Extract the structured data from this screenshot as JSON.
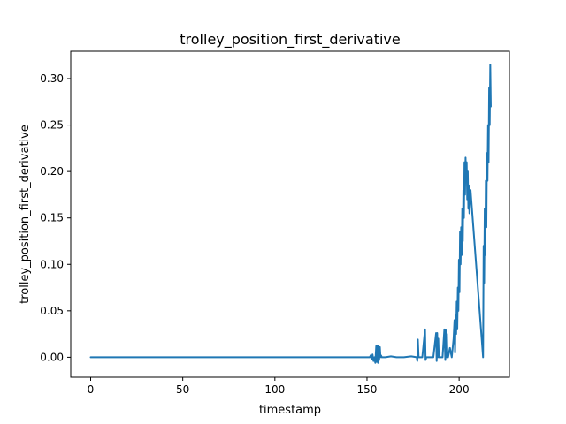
{
  "chart_data": {
    "type": "line",
    "title": "trolley_position_first_derivative",
    "xlabel": "timestamp",
    "ylabel": "trolley_position_first_derivative",
    "xlim": [
      -10.8,
      227.3
    ],
    "ylim": [
      -0.0215,
      0.3295
    ],
    "xticks": [
      0,
      50,
      100,
      150,
      200
    ],
    "yticks": [
      0.0,
      0.05,
      0.1,
      0.15,
      0.2,
      0.25,
      0.3
    ],
    "ytick_labels": [
      "0.00",
      "0.05",
      "0.10",
      "0.15",
      "0.20",
      "0.25",
      "0.30"
    ],
    "grid": false,
    "color": "#1f77b4",
    "series": [
      {
        "x": [
          0,
          151.5,
          152.0,
          152.5,
          153.0,
          153.5,
          154.0,
          154.5,
          155.0,
          155.3,
          155.6,
          156.0,
          156.3,
          156.6,
          157.0,
          157.3,
          157.6,
          158.0,
          160,
          163,
          166,
          170,
          174,
          177,
          177.3,
          177.6,
          178,
          180,
          181.5,
          181.8,
          182.2,
          184,
          186,
          187.5,
          187.8,
          188.1,
          188.4,
          188.7,
          189.0,
          190,
          191,
          192.0,
          192.5,
          192.8,
          193.1,
          193.4,
          193.7,
          194.0,
          195,
          196,
          197.0,
          197.5,
          197.8,
          198.1,
          198.4,
          198.7,
          199.0,
          199.3,
          199.6,
          199.9,
          200.2,
          200.5,
          200.8,
          201.1,
          201.4,
          201.7,
          202.0,
          202.3,
          202.6,
          202.9,
          203.2,
          203.5,
          203.8,
          204.1,
          204.4,
          204.7,
          205.0,
          205.3,
          205.6,
          205.9,
          206.2,
          213.0,
          213.3,
          213.6,
          213.9,
          214.2,
          214.5,
          214.8,
          215.1,
          215.4,
          215.7,
          216.0,
          216.3,
          216.6,
          216.9,
          217.2
        ],
        "y": [
          0.0,
          0.0,
          0.002,
          -0.002,
          0.003,
          -0.004,
          0.0,
          -0.006,
          0.012,
          -0.005,
          0.012,
          -0.006,
          0.012,
          -0.003,
          0.011,
          0.0,
          0.002,
          0.0,
          0.0,
          0.001,
          0.0,
          0.0,
          0.001,
          0.0,
          -0.004,
          0.019,
          0.0,
          0.0,
          0.03,
          -0.003,
          0.0,
          0.0,
          0.0,
          0.026,
          -0.004,
          0.026,
          0.0,
          0.02,
          0.0,
          0.0,
          0.0,
          0.03,
          -0.003,
          0.029,
          0.0,
          0.025,
          0.0,
          0.0,
          0.01,
          0.0,
          0.02,
          0.04,
          0.005,
          0.045,
          0.025,
          0.06,
          0.03,
          0.075,
          0.05,
          0.105,
          0.07,
          0.135,
          0.1,
          0.14,
          0.11,
          0.16,
          0.125,
          0.18,
          0.15,
          0.21,
          0.175,
          0.215,
          0.19,
          0.21,
          0.17,
          0.2,
          0.16,
          0.185,
          0.155,
          0.17,
          0.18,
          0.0,
          0.12,
          0.08,
          0.16,
          0.11,
          0.19,
          0.14,
          0.22,
          0.19,
          0.25,
          0.21,
          0.29,
          0.25,
          0.315,
          0.27
        ]
      }
    ]
  }
}
